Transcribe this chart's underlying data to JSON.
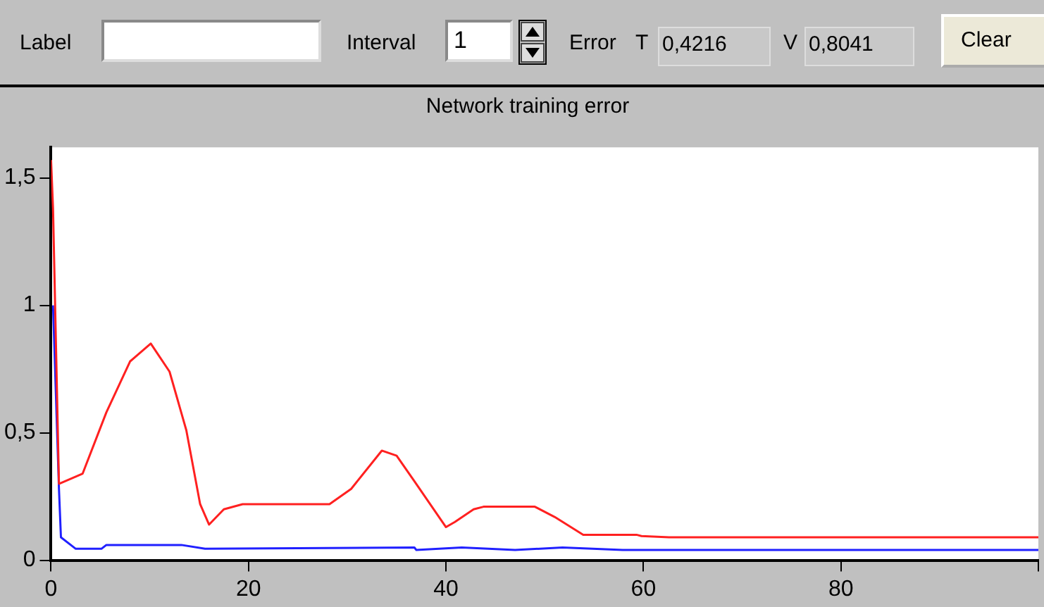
{
  "chart_data": {
    "type": "line",
    "title": "Network training error",
    "x": [
      0,
      0.2,
      0.8,
      3.2,
      5.6,
      8.0,
      10.1,
      12.0,
      13.7,
      15.1,
      16.0,
      17.5,
      19.4,
      28.2,
      30.4,
      33.5,
      35.0,
      36.8,
      40.0,
      40.9,
      42.8,
      43.8,
      49.0,
      51.0,
      53.9,
      55.7,
      59.3,
      59.8,
      62.6,
      100
    ],
    "series": [
      {
        "color": "#ff2020",
        "values": [
          1.57,
          1.38,
          0.3,
          0.34,
          0.58,
          0.78,
          0.85,
          0.74,
          0.51,
          0.22,
          0.14,
          0.2,
          0.22,
          0.22,
          0.28,
          0.43,
          0.41,
          0.31,
          0.13,
          0.15,
          0.2,
          0.21,
          0.21,
          0.17,
          0.1,
          0.1,
          0.1,
          0.095,
          0.09,
          0.09
        ]
      },
      {
        "color": "#2020ff",
        "x": [
          0.2,
          0.8,
          1.0,
          2.5,
          5.1,
          5.6,
          13.2,
          15.6,
          36.8,
          37.0,
          41.6,
          47,
          51.8,
          57.9,
          100
        ],
        "values": [
          1.0,
          0.28,
          0.09,
          0.045,
          0.045,
          0.06,
          0.06,
          0.045,
          0.05,
          0.04,
          0.05,
          0.04,
          0.05,
          0.04,
          0.04
        ]
      }
    ],
    "xlim": [
      0,
      100
    ],
    "ylim": [
      0,
      1.62
    ],
    "xticks": [
      0,
      20,
      40,
      60,
      80,
      {
        "value": 100,
        "label": null
      }
    ],
    "yticks": [
      {
        "value": 0,
        "label": "0"
      },
      {
        "value": 0.5,
        "label": "0,5"
      },
      {
        "value": 1,
        "label": "1"
      },
      {
        "value": 1.5,
        "label": "1,5"
      }
    ],
    "grid": false,
    "legend": false,
    "marker": "none",
    "line_style": "solid",
    "annotations": [
      "Label",
      "Interval",
      "1",
      "Error",
      "T",
      "0,4216",
      "V",
      "0,8041",
      "Clear"
    ]
  }
}
